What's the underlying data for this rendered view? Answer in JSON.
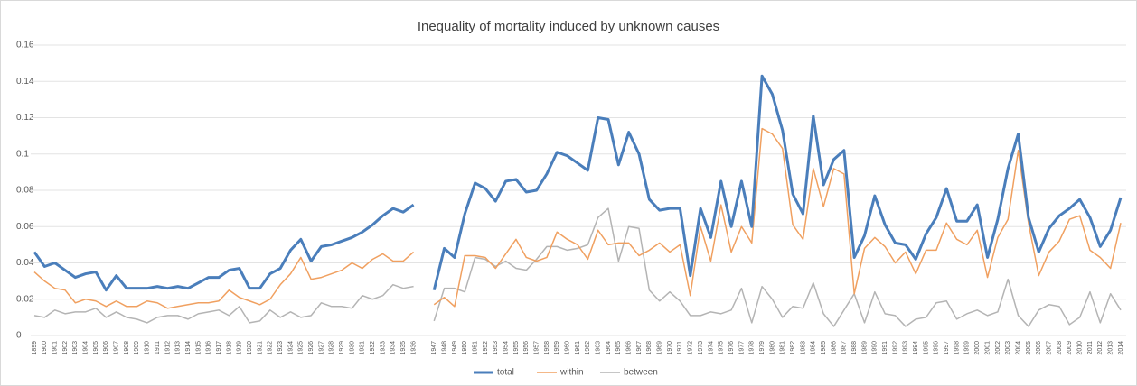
{
  "chart_data": {
    "type": "line",
    "title": "Inequality of mortality induced by unknown causes",
    "categories": [
      "1899",
      "1900",
      "1901",
      "1902",
      "1903",
      "1904",
      "1905",
      "1906",
      "1907",
      "1908",
      "1909",
      "1910",
      "1911",
      "1912",
      "1913",
      "1914",
      "1915",
      "1916",
      "1917",
      "1918",
      "1919",
      "1920",
      "1921",
      "1922",
      "1923",
      "1924",
      "1925",
      "1926",
      "1927",
      "1928",
      "1929",
      "1930",
      "1931",
      "1932",
      "1933",
      "1934",
      "1935",
      "1936",
      null,
      "1947",
      "1948",
      "1949",
      "1950",
      "1951",
      "1952",
      "1953",
      "1954",
      "1955",
      "1956",
      "1957",
      "1958",
      "1959",
      "1960",
      "1961",
      "1962",
      "1963",
      "1964",
      "1965",
      "1966",
      "1967",
      "1968",
      "1969",
      "1970",
      "1971",
      "1972",
      "1973",
      "1974",
      "1975",
      "1976",
      "1977",
      "1978",
      "1979",
      "1980",
      "1981",
      "1982",
      "1983",
      "1984",
      "1985",
      "1986",
      "1987",
      "1988",
      "1989",
      "1990",
      "1991",
      "1992",
      "1993",
      "1994",
      "1995",
      "1996",
      "1997",
      "1998",
      "1999",
      "2000",
      "2001",
      "2002",
      "2003",
      "2004",
      "2005",
      "2006",
      "2007",
      "2008",
      "2009",
      "2010",
      "2011",
      "2012",
      "2013",
      "2014"
    ],
    "series": [
      {
        "name": "total",
        "color": "#4a7ebb",
        "values": [
          0.046,
          0.038,
          0.04,
          0.036,
          0.032,
          0.034,
          0.035,
          0.025,
          0.033,
          0.026,
          0.026,
          0.026,
          0.027,
          0.026,
          0.027,
          0.026,
          0.029,
          0.032,
          0.032,
          0.036,
          0.037,
          0.026,
          0.026,
          0.034,
          0.037,
          0.047,
          0.053,
          0.041,
          0.049,
          0.05,
          0.052,
          0.054,
          0.057,
          0.061,
          0.066,
          0.07,
          0.068,
          0.072,
          null,
          0.025,
          0.048,
          0.043,
          0.067,
          0.084,
          0.081,
          0.074,
          0.085,
          0.086,
          0.079,
          0.08,
          0.089,
          0.101,
          0.099,
          0.095,
          0.091,
          0.12,
          0.119,
          0.094,
          0.112,
          0.1,
          0.075,
          0.069,
          0.07,
          0.07,
          0.033,
          0.07,
          0.054,
          0.085,
          0.06,
          0.085,
          0.06,
          0.143,
          0.133,
          0.113,
          0.078,
          0.067,
          0.121,
          0.083,
          0.097,
          0.102,
          0.043,
          0.055,
          0.077,
          0.061,
          0.051,
          0.05,
          0.042,
          0.056,
          0.065,
          0.081,
          0.063,
          0.063,
          0.072,
          0.043,
          0.064,
          0.092,
          0.111,
          0.065,
          0.046,
          0.059,
          0.066,
          0.07,
          0.075,
          0.065,
          0.049,
          0.058,
          0.076
        ]
      },
      {
        "name": "within",
        "color": "#f0a060",
        "values": [
          0.035,
          0.03,
          0.026,
          0.025,
          0.018,
          0.02,
          0.019,
          0.016,
          0.019,
          0.016,
          0.016,
          0.019,
          0.018,
          0.015,
          0.016,
          0.017,
          0.018,
          0.018,
          0.019,
          0.025,
          0.021,
          0.019,
          0.017,
          0.02,
          0.028,
          0.034,
          0.043,
          0.031,
          0.032,
          0.034,
          0.036,
          0.04,
          0.037,
          0.042,
          0.045,
          0.041,
          0.041,
          0.046,
          null,
          0.017,
          0.021,
          0.016,
          0.044,
          0.044,
          0.043,
          0.037,
          0.045,
          0.053,
          0.043,
          0.041,
          0.043,
          0.057,
          0.053,
          0.05,
          0.042,
          0.058,
          0.05,
          0.051,
          0.051,
          0.044,
          0.047,
          0.051,
          0.046,
          0.05,
          0.022,
          0.06,
          0.041,
          0.072,
          0.046,
          0.06,
          0.051,
          0.114,
          0.111,
          0.103,
          0.061,
          0.053,
          0.092,
          0.071,
          0.092,
          0.089,
          0.023,
          0.048,
          0.054,
          0.049,
          0.04,
          0.046,
          0.034,
          0.047,
          0.047,
          0.062,
          0.053,
          0.05,
          0.058,
          0.032,
          0.054,
          0.064,
          0.102,
          0.062,
          0.033,
          0.046,
          0.052,
          0.064,
          0.066,
          0.047,
          0.043,
          0.037,
          0.062
        ]
      },
      {
        "name": "between",
        "color": "#b4b4b4",
        "values": [
          0.011,
          0.01,
          0.014,
          0.012,
          0.013,
          0.013,
          0.015,
          0.01,
          0.013,
          0.01,
          0.009,
          0.007,
          0.01,
          0.011,
          0.011,
          0.009,
          0.012,
          0.013,
          0.014,
          0.011,
          0.016,
          0.007,
          0.008,
          0.014,
          0.01,
          0.013,
          0.01,
          0.011,
          0.018,
          0.016,
          0.016,
          0.015,
          0.022,
          0.02,
          0.022,
          0.028,
          0.026,
          0.027,
          null,
          0.008,
          0.026,
          0.026,
          0.024,
          0.043,
          0.042,
          0.038,
          0.041,
          0.037,
          0.036,
          0.042,
          0.049,
          0.049,
          0.047,
          0.048,
          0.05,
          0.065,
          0.07,
          0.041,
          0.06,
          0.059,
          0.025,
          0.019,
          0.024,
          0.019,
          0.011,
          0.011,
          0.013,
          0.012,
          0.014,
          0.026,
          0.007,
          0.027,
          0.02,
          0.01,
          0.016,
          0.015,
          0.029,
          0.012,
          0.005,
          0.014,
          0.023,
          0.007,
          0.024,
          0.012,
          0.011,
          0.005,
          0.009,
          0.01,
          0.018,
          0.019,
          0.009,
          0.012,
          0.014,
          0.011,
          0.013,
          0.031,
          0.011,
          0.005,
          0.014,
          0.017,
          0.016,
          0.006,
          0.01,
          0.024,
          0.007,
          0.023,
          0.014
        ]
      }
    ],
    "ylim": [
      0,
      0.16
    ],
    "yticks": [
      0,
      0.02,
      0.04,
      0.06,
      0.08,
      0.1,
      0.12,
      0.14,
      0.16
    ],
    "grid": true,
    "legend": "bottom"
  }
}
